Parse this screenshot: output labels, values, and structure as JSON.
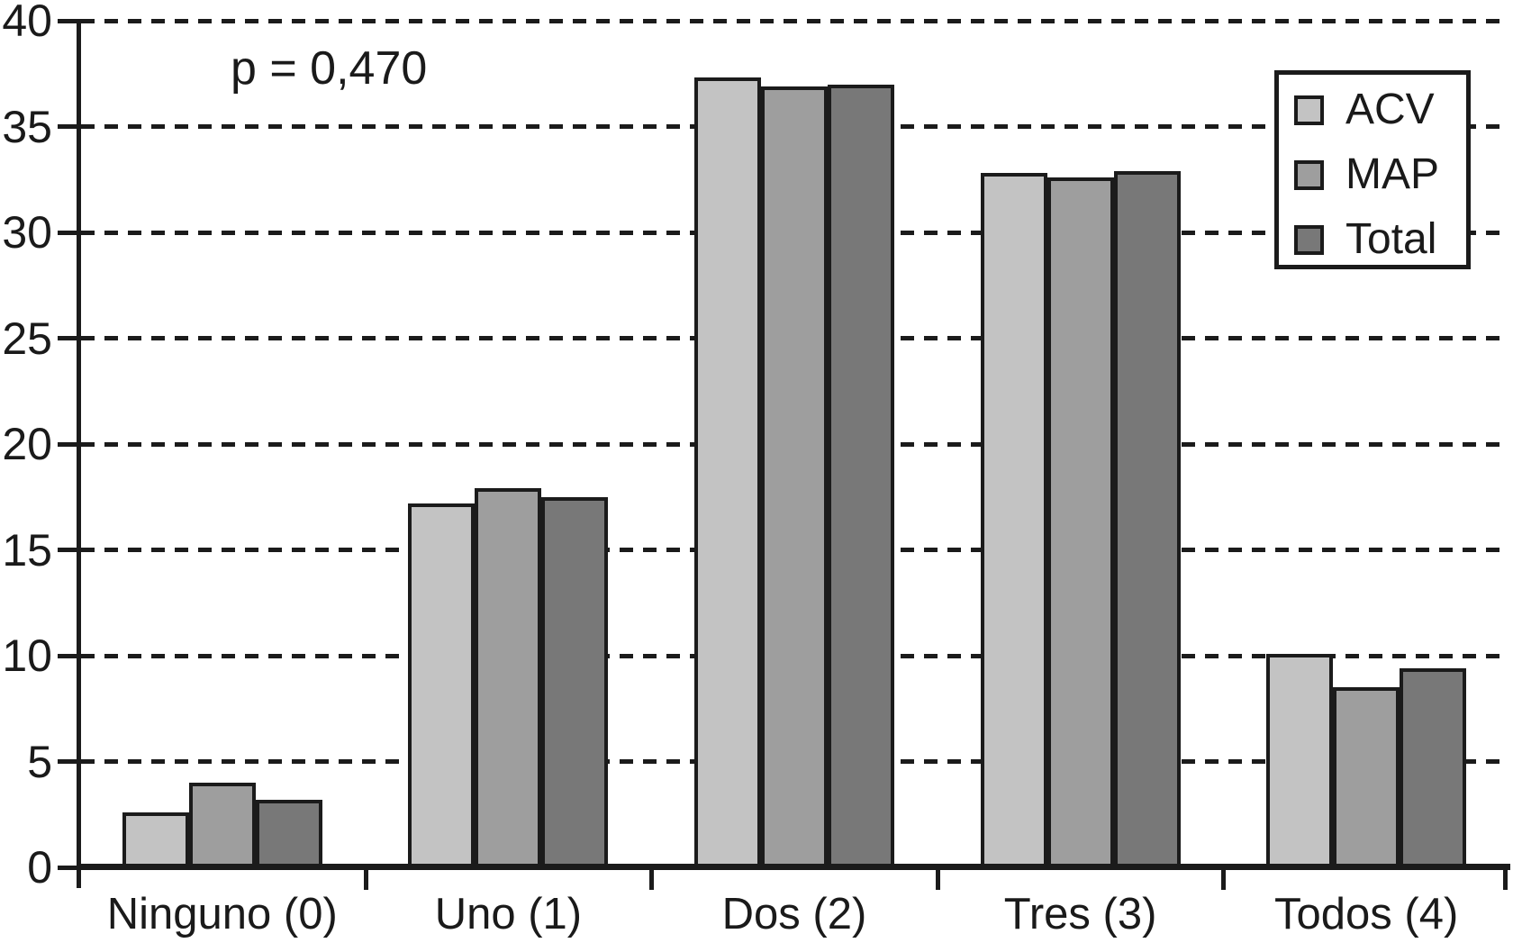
{
  "chart_data": {
    "type": "bar",
    "title": "",
    "annotation": "p = 0,470",
    "categories": [
      "Ninguno (0)",
      "Uno (1)",
      "Dos (2)",
      "Tres (3)",
      "Todos (4)"
    ],
    "series": [
      {
        "name": "ACV",
        "color": "#c3c3c3",
        "values": [
          2.6,
          17.2,
          37.3,
          32.8,
          10.1
        ]
      },
      {
        "name": "MAP",
        "color": "#9e9e9e",
        "values": [
          4.0,
          17.9,
          36.9,
          32.6,
          8.5
        ]
      },
      {
        "name": "Total",
        "color": "#787878",
        "values": [
          3.2,
          17.5,
          37.0,
          32.9,
          9.4
        ]
      }
    ],
    "ylim": [
      0,
      40
    ],
    "yticks": [
      0,
      5,
      10,
      15,
      20,
      25,
      30,
      35,
      40
    ],
    "xlabel": "",
    "ylabel": "",
    "grid": "horizontal-dashed",
    "legend_position": "top-right",
    "ink_color": "#1a1a1a",
    "background_color": "#ffffff"
  }
}
